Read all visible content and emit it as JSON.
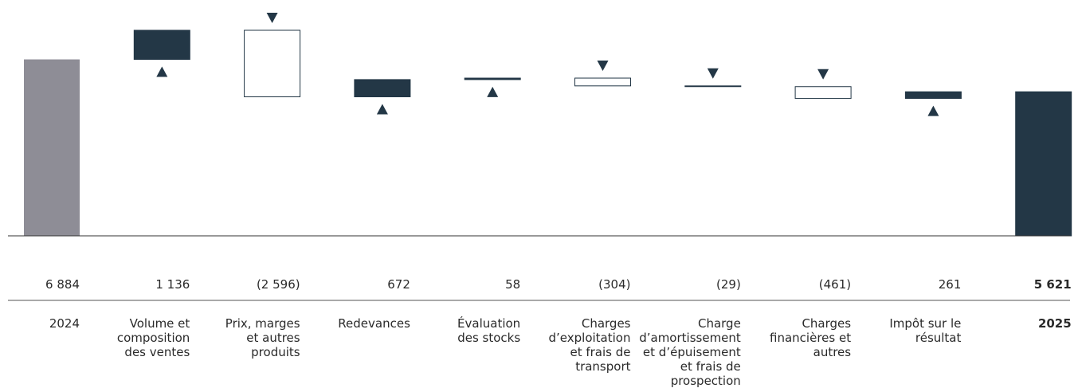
{
  "chart_data": {
    "type": "waterfall",
    "categories": [
      "2024",
      "Volume et\ncomposition\ndes ventes",
      "Prix, marges\net autres\nproduits",
      "Redevances",
      "Évaluation\ndes stocks",
      "Charges\nd’exploitation\net frais de\ntransport",
      "Charge\nd’amortissement\net d’épuisement\net frais de\nprospection",
      "Charges\nfinancières et\nautres",
      "Impôt sur le\nrésultat",
      "2025"
    ],
    "values": [
      6884,
      1136,
      -2596,
      672,
      58,
      -304,
      -29,
      -461,
      261,
      5621
    ],
    "value_labels": [
      "6 884",
      "1 136",
      "(2 596)",
      "672",
      "58",
      "(304)",
      "(29)",
      "(461)",
      "261",
      "5 621"
    ],
    "kinds": [
      "total",
      "delta",
      "delta",
      "delta",
      "delta",
      "delta",
      "delta",
      "delta",
      "delta",
      "total"
    ],
    "colors": {
      "start": "#8e8d96",
      "total": "#233746",
      "increase": "#233746",
      "decrease": "#ffffff"
    }
  }
}
